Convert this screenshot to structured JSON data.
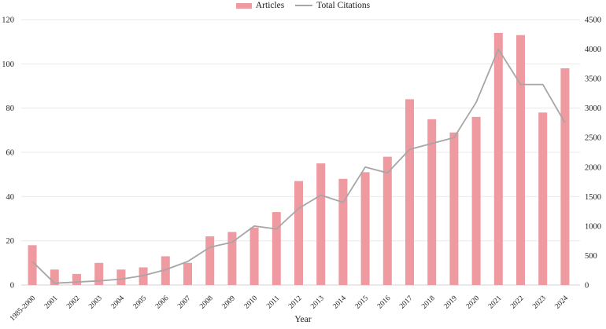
{
  "chart_data": {
    "type": "combo",
    "title": "",
    "xlabel": "Year",
    "categories": [
      "1985-2000",
      "2001",
      "2002",
      "2003",
      "2004",
      "2005",
      "2006",
      "2007",
      "2008",
      "2009",
      "2010",
      "2011",
      "2012",
      "2013",
      "2014",
      "2015",
      "2016",
      "2017",
      "2018",
      "2019",
      "2020",
      "2021",
      "2022",
      "2023",
      "2024"
    ],
    "series": [
      {
        "name": "Articles",
        "type": "bar",
        "axis": "left",
        "color": "#ef9aa0",
        "values": [
          18,
          7,
          5,
          10,
          7,
          8,
          13,
          10,
          22,
          24,
          26,
          33,
          47,
          55,
          48,
          51,
          58,
          84,
          75,
          69,
          76,
          114,
          113,
          78,
          98
        ]
      },
      {
        "name": "Total Citations",
        "type": "line",
        "axis": "right",
        "color": "#a6a6a6",
        "values": [
          400,
          30,
          50,
          70,
          100,
          160,
          260,
          400,
          640,
          725,
          1000,
          950,
          1300,
          1525,
          1400,
          2000,
          1900,
          2300,
          2400,
          2500,
          3100,
          4000,
          3400,
          3400,
          2750
        ]
      }
    ],
    "left_axis": {
      "min": 0,
      "max": 120,
      "ticks": [
        0,
        20,
        40,
        60,
        80,
        100,
        120
      ]
    },
    "right_axis": {
      "min": 0,
      "max": 4500,
      "ticks": [
        0,
        500,
        1000,
        1500,
        2000,
        2500,
        3000,
        3500,
        4000,
        4500
      ]
    },
    "grid": true,
    "legend_position": "top-center",
    "colors": {
      "bar": "#ef9aa0",
      "line": "#a6a6a6",
      "gridline": "#e9e9e9",
      "baseline": "#d6d6d6",
      "text": "#1f1f1f",
      "background": "#ffffff"
    }
  }
}
